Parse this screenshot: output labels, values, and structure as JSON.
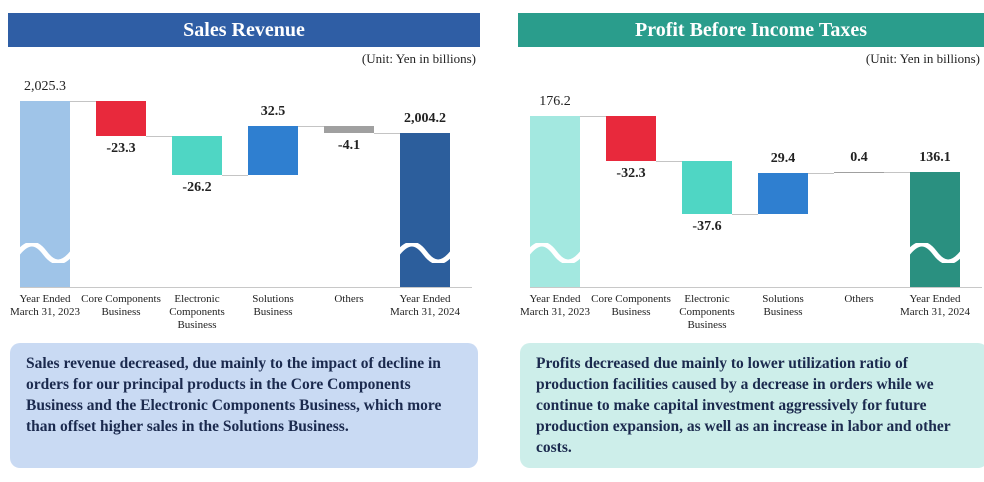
{
  "chart_data": [
    {
      "type": "waterfall",
      "title": "Sales Revenue",
      "unit_note": "(Unit: Yen in billions)",
      "title_color": "#2f5ea5",
      "box_color": "#c9daf3",
      "categories": [
        "Year Ended\nMarch 31, 2023",
        "Core Components\nBusiness",
        "Electronic\nComponents\nBusiness",
        "Solutions\nBusiness",
        "Others",
        "Year Ended\nMarch 31, 2024"
      ],
      "values": [
        2025.3,
        -23.3,
        -26.2,
        32.5,
        -4.1,
        2004.2
      ],
      "value_labels": [
        "2,025.3",
        "-23.3",
        "-26.2",
        "32.5",
        "-4.1",
        "2,004.2"
      ],
      "measure": [
        "absolute",
        "relative",
        "relative",
        "relative",
        "relative",
        "total"
      ],
      "colors": [
        "#9fc4e8",
        "#e8293c",
        "#4fd6c4",
        "#2f7fd0",
        "#a0a0a0",
        "#2c5e9c"
      ],
      "ylim": [
        1901,
        2046
      ],
      "axis_break": true,
      "description": "Sales revenue decreased, due mainly to the impact of decline in orders for our principal products in the Core Components Business and the Electronic Components Business, which more than offset higher sales in the Solutions Business."
    },
    {
      "type": "waterfall",
      "title": "Profit Before Income Taxes",
      "unit_note": "(Unit: Yen in billions)",
      "title_color": "#2a9d8c",
      "box_color": "#cdeeea",
      "categories": [
        "Year Ended\nMarch 31, 2023",
        "Core Components\nBusiness",
        "Electronic\nComponents\nBusiness",
        "Solutions\nBusiness",
        "Others",
        "Year Ended\nMarch 31, 2024"
      ],
      "values": [
        176.2,
        -32.3,
        -37.6,
        29.4,
        0.4,
        136.1
      ],
      "measure": [
        "absolute",
        "relative",
        "relative",
        "relative",
        "relative",
        "total"
      ],
      "colors": [
        "#a3e8e0",
        "#e8293c",
        "#4fd6c4",
        "#2f7fd0",
        "#a0a0a0",
        "#2a9080"
      ],
      "ylim": [
        54,
        209
      ],
      "axis_break": true,
      "description": "Profits decreased due mainly to lower utilization ratio of production facilities caused by a decrease in orders while we continue to make capital investment aggressively for future production expansion, as well as an increase in labor and other costs."
    }
  ]
}
